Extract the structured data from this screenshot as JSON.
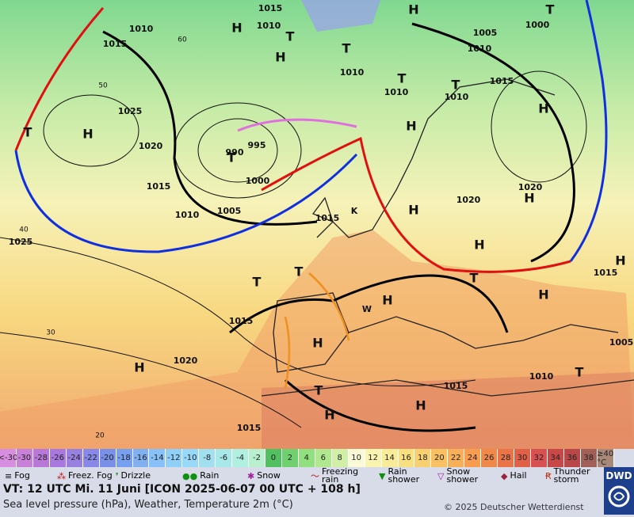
{
  "map_labels": [
    "H",
    "H",
    "H",
    "H",
    "T",
    "H",
    "T",
    "T",
    "995",
    "990",
    "1000",
    "1025",
    "1020",
    "1015",
    "1010",
    "1005",
    "1015",
    "K",
    "H",
    "1020",
    "1020",
    "H",
    "H",
    "T",
    "H",
    "1015",
    "H",
    "T",
    "T",
    "1015",
    "H",
    "W",
    "H",
    "H",
    "1020",
    "T",
    "H",
    "H",
    "1015",
    "1010",
    "T",
    "1005",
    "1015",
    "1025",
    "1010",
    "1015",
    "1015",
    "1010",
    "1010",
    "1005",
    "1010",
    "1015",
    "1000",
    "1010",
    "1010",
    "T",
    "T",
    "T",
    "T",
    "H",
    "60",
    "50",
    "40",
    "30",
    "20"
  ],
  "scale": [
    {
      "label": "<-30",
      "color": "#d88ee0"
    },
    {
      "label": "-30",
      "color": "#c880d8"
    },
    {
      "label": "-28",
      "color": "#b878d8"
    },
    {
      "label": "-26",
      "color": "#a878e0"
    },
    {
      "label": "-24",
      "color": "#9880e0"
    },
    {
      "label": "-22",
      "color": "#8888e8"
    },
    {
      "label": "-20",
      "color": "#7890e8"
    },
    {
      "label": "-18",
      "color": "#78a0f0"
    },
    {
      "label": "-16",
      "color": "#80b0f0"
    },
    {
      "label": "-14",
      "color": "#88c0f8"
    },
    {
      "label": "-12",
      "color": "#90d0f8"
    },
    {
      "label": "-10",
      "color": "#98d8f8"
    },
    {
      "label": "-8",
      "color": "#a0e0f0"
    },
    {
      "label": "-6",
      "color": "#a8e8e8"
    },
    {
      "label": "-4",
      "color": "#b0f0e0"
    },
    {
      "label": "-2",
      "color": "#b8f0d0"
    },
    {
      "label": "0",
      "color": "#50c060"
    },
    {
      "label": "2",
      "color": "#70d070"
    },
    {
      "label": "4",
      "color": "#90e080"
    },
    {
      "label": "6",
      "color": "#b0e890"
    },
    {
      "label": "8",
      "color": "#d0f0a8"
    },
    {
      "label": "10",
      "color": "#fafad8"
    },
    {
      "label": "12",
      "color": "#faf4b0"
    },
    {
      "label": "14",
      "color": "#f8ec98"
    },
    {
      "label": "16",
      "color": "#f8e080"
    },
    {
      "label": "18",
      "color": "#f8d070"
    },
    {
      "label": "20",
      "color": "#f8c060"
    },
    {
      "label": "22",
      "color": "#f8b058"
    },
    {
      "label": "24",
      "color": "#f89c50"
    },
    {
      "label": "26",
      "color": "#f08848"
    },
    {
      "label": "28",
      "color": "#e87448"
    },
    {
      "label": "30",
      "color": "#e06048"
    },
    {
      "label": "32",
      "color": "#d85050"
    },
    {
      "label": "34",
      "color": "#c84848"
    },
    {
      "label": "36",
      "color": "#b84848"
    },
    {
      "label": "38",
      "color": "#a06058"
    },
    {
      "label": "≥40 °C",
      "color": "#a88878"
    }
  ],
  "legend": [
    "Fog",
    "Freez. Fog",
    "Drizzle",
    "Rain",
    "Snow",
    "Freezing rain",
    "Rain shower",
    "Snow shower",
    "Hail",
    "Thunder storm"
  ],
  "valid_time": "VT: 12 UTC Mi.  11 Juni [ICON 2025-06-07  00 UTC + 108 h]",
  "subtitle": "Sea level pressure (hPa), Weather, Temperature 2m (°C)",
  "copyright": "© 2025 Deutscher Wetterdienst",
  "logo": "DWD"
}
